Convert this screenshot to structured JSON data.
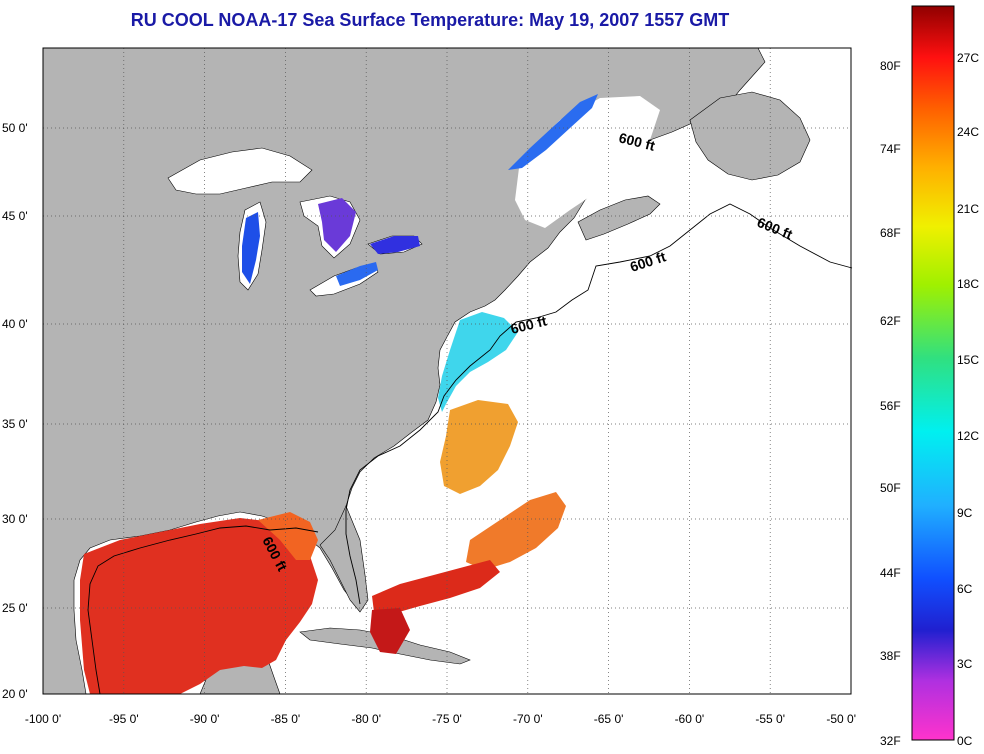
{
  "title": "RU COOL  NOAA-17  Sea Surface Temperature:  May 19, 2007 1557 GMT",
  "x_ticks": [
    "-100 0'",
    "-95 0'",
    "-90 0'",
    "-85 0'",
    "-80 0'",
    "-75 0'",
    "-70 0'",
    "-65 0'",
    "-60 0'",
    "-55 0'",
    "-50 0'"
  ],
  "y_ticks": [
    "50 0'",
    "45 0'",
    "40 0'",
    "35 0'",
    "30 0'",
    "25 0'",
    "20 0'"
  ],
  "contour_label": "600 ft",
  "colorbar": {
    "fahrenheit": [
      "80F",
      "74F",
      "68F",
      "62F",
      "56F",
      "50F",
      "44F",
      "38F",
      "32F"
    ],
    "celsius": [
      "27C",
      "24C",
      "21C",
      "18C",
      "15C",
      "12C",
      "9C",
      "6C",
      "3C",
      "0C"
    ]
  },
  "colors": {
    "land": "#b4b4b4",
    "ocean_nodata": "#ffffff",
    "title": "#1a1aa6"
  }
}
